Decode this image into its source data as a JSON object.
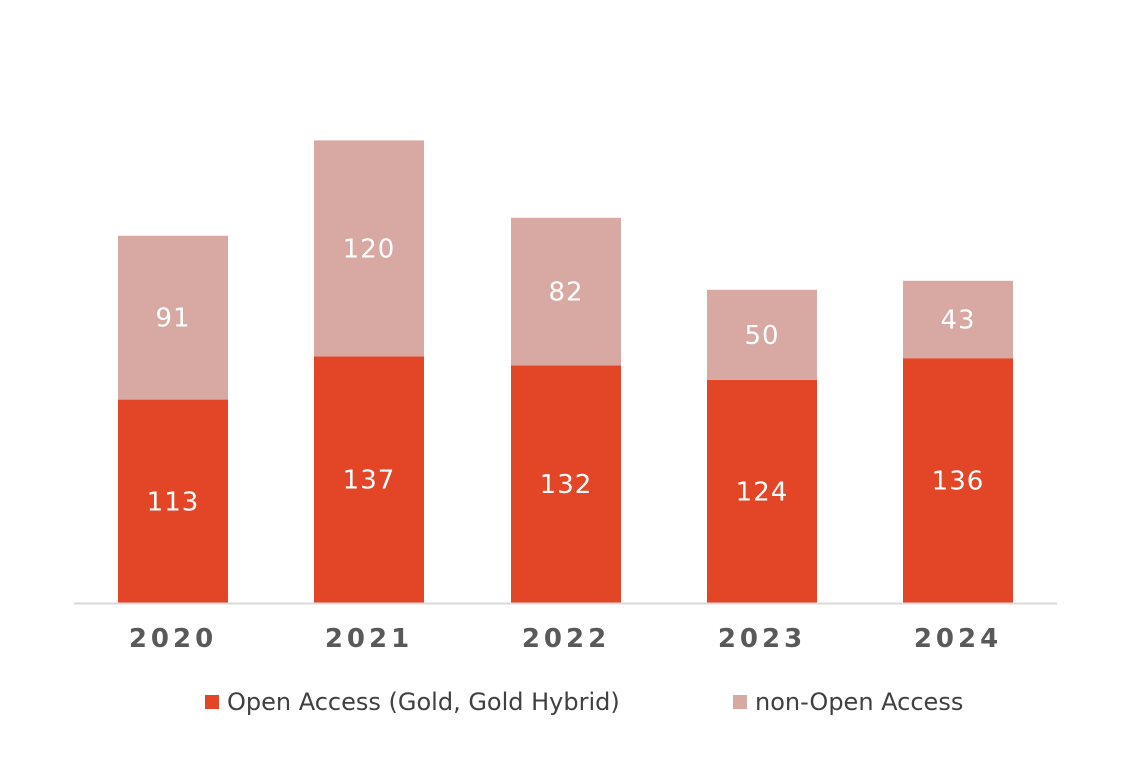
{
  "chart_data": {
    "type": "bar",
    "stacked": true,
    "categories": [
      "2020",
      "2021",
      "2022",
      "2023",
      "2024"
    ],
    "series": [
      {
        "name": "Open Access (Gold, Gold Hybrid)",
        "color": "#E34627",
        "values": [
          113,
          137,
          132,
          124,
          136
        ]
      },
      {
        "name": "non-Open Access",
        "color": "#D8A8A2",
        "values": [
          91,
          120,
          82,
          50,
          43
        ]
      }
    ],
    "ylim": [
      0,
      280
    ],
    "grid": false,
    "legend": "bottom"
  },
  "legend": {
    "items": [
      {
        "label": "Open Access (Gold, Gold Hybrid)",
        "color": "#E34627"
      },
      {
        "label": "non-Open Access",
        "color": "#D8A8A2"
      }
    ]
  },
  "colors": {
    "axis": "#D9D9D9"
  }
}
